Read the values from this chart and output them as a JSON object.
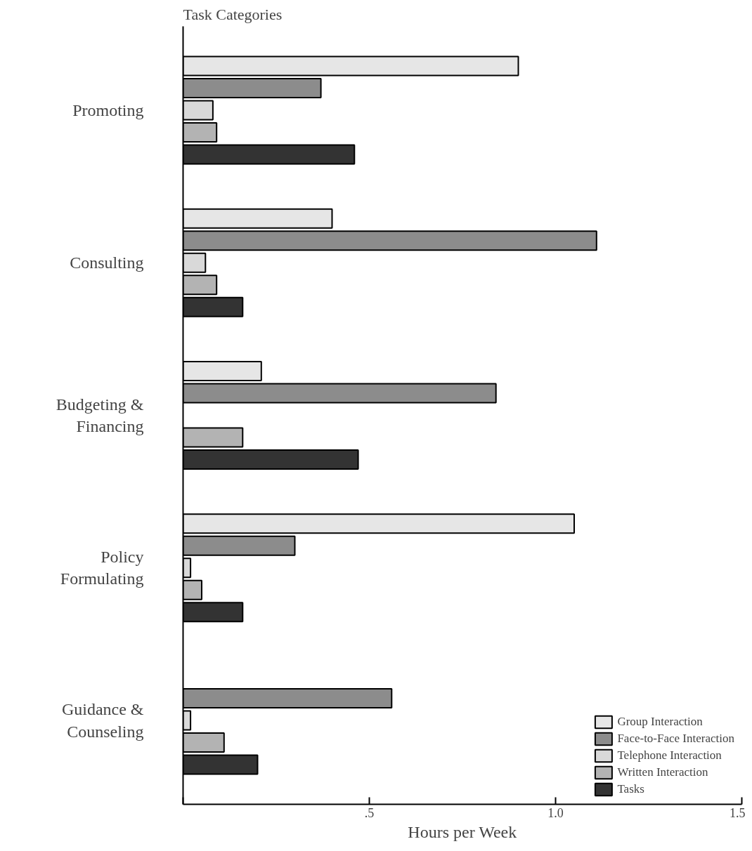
{
  "chart_data": {
    "type": "bar",
    "orientation": "horizontal",
    "title": "Task Categories",
    "xlabel": "Hours per Week",
    "categories": [
      "Promoting",
      "Consulting",
      "Budgeting & Financing",
      "Policy Formulating",
      "Guidance & Counseling"
    ],
    "series": [
      {
        "name": "Group Interaction",
        "color": "#e6e6e6",
        "values": [
          0.9,
          0.4,
          0.21,
          1.05,
          null
        ]
      },
      {
        "name": "Face-to-Face Interaction",
        "color": "#8c8c8c",
        "values": [
          0.37,
          1.11,
          0.84,
          0.3,
          0.56
        ]
      },
      {
        "name": "Telephone Interaction",
        "color": "#d9d9d9",
        "values": [
          0.08,
          0.06,
          null,
          0.02,
          0.02
        ]
      },
      {
        "name": "Written Interaction",
        "color": "#b3b3b3",
        "values": [
          0.09,
          0.09,
          0.16,
          0.05,
          0.11
        ]
      },
      {
        "name": "Tasks",
        "color": "#333333",
        "values": [
          0.46,
          0.16,
          0.47,
          0.16,
          0.2
        ]
      }
    ],
    "xlim": [
      0,
      1.5
    ],
    "xticks": [
      {
        "value": 0,
        "label": null
      },
      {
        "value": 0.5,
        "label": ".5"
      },
      {
        "value": 1.0,
        "label": "1.0"
      },
      {
        "value": 1.5,
        "label": "1.5"
      }
    ],
    "grid": false,
    "legend": "bottom right"
  }
}
